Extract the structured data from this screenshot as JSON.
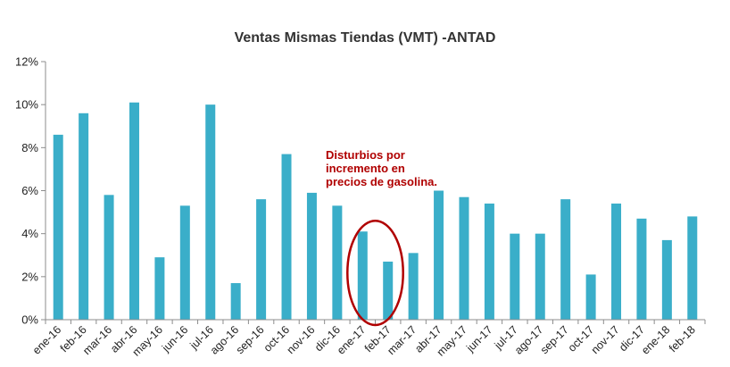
{
  "chart_data": {
    "type": "bar",
    "title": "Ventas Mismas Tiendas (VMT) -ANTAD",
    "xlabel": "",
    "ylabel": "",
    "ylim": [
      0,
      12
    ],
    "yticks": [
      "0%",
      "2%",
      "4%",
      "6%",
      "8%",
      "10%",
      "12%"
    ],
    "categories": [
      "ene-16",
      "feb-16",
      "mar-16",
      "abr-16",
      "may-16",
      "jun-16",
      "jul-16",
      "ago-16",
      "sep-16",
      "oct-16",
      "nov-16",
      "dic-16",
      "ene-17",
      "feb-17",
      "mar-17",
      "abr-17",
      "may-17",
      "jun-17",
      "jul-17",
      "ago-17",
      "sep-17",
      "oct-17",
      "nov-17",
      "dic-17",
      "ene-18",
      "feb-18"
    ],
    "values": [
      8.6,
      9.6,
      5.8,
      10.1,
      2.9,
      5.3,
      10.0,
      1.7,
      5.6,
      7.7,
      5.9,
      5.3,
      4.1,
      2.7,
      3.1,
      6.0,
      5.7,
      5.4,
      4.0,
      4.0,
      5.6,
      2.1,
      5.4,
      4.7,
      3.7,
      4.8
    ],
    "bar_color": "#3aaec9",
    "grid": false,
    "annotation": {
      "lines": [
        "Disturbios  por",
        "incremento en",
        "precios de gasolina."
      ],
      "color": "#b00000",
      "highlight": [
        "ene-17",
        "feb-17"
      ]
    }
  }
}
